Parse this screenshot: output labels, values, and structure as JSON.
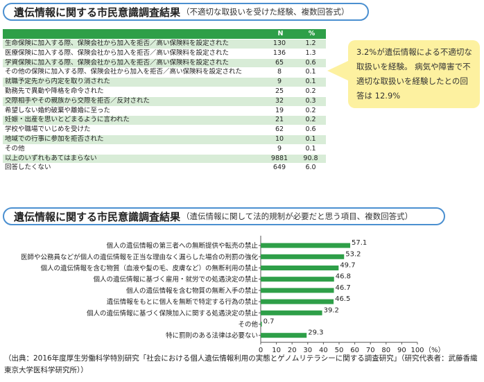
{
  "section1": {
    "title_main": "遺伝情報に関する市民意識調査結果",
    "title_sub": "（不適切な取扱いを受けた経験、複数回答式）",
    "columns": [
      "",
      "N",
      "%"
    ],
    "rows": [
      {
        "label": "生命保険に加入する際、保険会社から加入を拒否／高い保険料を設定された",
        "n": "130",
        "pct": "1.2"
      },
      {
        "label": "医療保険に加入する際、保険会社から加入を拒否／高い保険料を設定された",
        "n": "136",
        "pct": "1.3"
      },
      {
        "label": "学資保険に加入する際、保険会社から加入を拒否／高い保険料を設定された",
        "n": "65",
        "pct": "0.6"
      },
      {
        "label": "その他の保険に加入する際、保険会社から加入を拒否／高い保険料を設定された",
        "n": "8",
        "pct": "0.1"
      },
      {
        "label": "就職予定先から内定を取り消された",
        "n": "9",
        "pct": "0.1"
      },
      {
        "label": "勤務先で異動や降格を命令された",
        "n": "25",
        "pct": "0.2"
      },
      {
        "label": "交際相手やその親族から交際を拒否／反対された",
        "n": "32",
        "pct": "0.3"
      },
      {
        "label": "希望しない婚約破棄や離婚に至った",
        "n": "19",
        "pct": "0.2"
      },
      {
        "label": "妊娠・出産を思いとどまるように言われた",
        "n": "21",
        "pct": "0.2"
      },
      {
        "label": "学校や職場でいじめを受けた",
        "n": "62",
        "pct": "0.6"
      },
      {
        "label": "地域での行事に参加を拒否された",
        "n": "10",
        "pct": "0.1"
      },
      {
        "label": "その他",
        "n": "9",
        "pct": "0.1"
      },
      {
        "label": "以上のいずれもあてはまらない",
        "n": "9881",
        "pct": "90.8"
      },
      {
        "label": "回答したくない",
        "n": "649",
        "pct": "6.0"
      }
    ],
    "callout": "3.2%が遺伝情報による不適切な取扱いを経験。 病気や障害で不適切な取扱いを経験したとの回答は 12.9%"
  },
  "section2": {
    "title_main": "遺伝情報に関する市民意識調査結果",
    "title_sub": "（遺伝情報に関して法的規制が必要だと思う項目、複数回答式）"
  },
  "chart_data": {
    "type": "bar",
    "orientation": "horizontal",
    "categories": [
      "個人の遺伝情報の第三者への無断提供や転売の禁止",
      "医師や公務員などが個人の遺伝情報を正当な理由なく漏らした場合の刑罰の強化",
      "個人の遺伝情報を含む物質（血液や髪の毛、皮膚など）の無断利用の禁止",
      "個人の遺伝情報に基づく雇用・就労での処遇決定の禁止",
      "個人の遺伝情報を含む物質の無断入手の禁止",
      "遺伝情報をもとに個人を無断で特定する行為の禁止",
      "個人の遺伝情報に基づく保険加入に関する処遇決定の禁止",
      "その他",
      "特に罰則のある法律は必要ない"
    ],
    "values": [
      57.1,
      53.2,
      49.7,
      46.8,
      46.7,
      46.5,
      39.2,
      0.7,
      29.3
    ],
    "value_labels": [
      "57.1",
      "53.2",
      "49.7",
      "46.8",
      "46.7",
      "46.5",
      "39.2",
      "0.7",
      "29.3"
    ],
    "xlim": [
      0,
      100
    ],
    "xticks": [
      "0",
      "10",
      "20",
      "30",
      "40",
      "50",
      "60",
      "70",
      "80",
      "90",
      "100"
    ],
    "xunit": "（%）",
    "bar_color": "#2e9f48",
    "grid": false
  },
  "source": "（出典：2016年度厚生労働科学特別研究「社会における個人遺伝情報利用の実態とゲノムリテラシーに関する調査研究」（研究代表者：武藤香織 東京大学医科学研究所））",
  "colors": {
    "accent": "#2e9f48",
    "row_stripe": "#d8ecd7",
    "title_border": "#4a8fd0",
    "callout_bg": "#fdf1a0"
  }
}
